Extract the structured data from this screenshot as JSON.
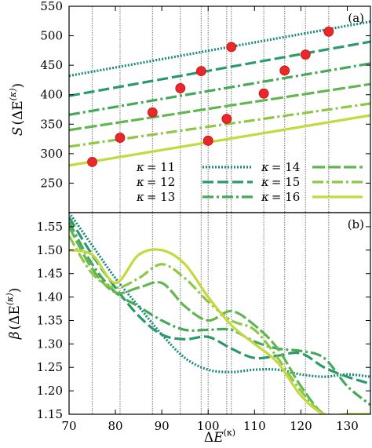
{
  "chart_data": [
    {
      "type": "line",
      "panel_label": "(a)",
      "ylabel": "S(ΔE^(κ))",
      "xlim": [
        70,
        135
      ],
      "ylim": [
        200,
        550
      ],
      "yticks": [
        250,
        300,
        350,
        400,
        450,
        500,
        550
      ],
      "grid": "vertical dotted lines at ΔE^(κ) values of the marked points",
      "vertical_markers": [
        75,
        81,
        88,
        94,
        98.5,
        100,
        104,
        105,
        112,
        116.5,
        121,
        126
      ],
      "legend_placement": "bottom-right",
      "series": [
        {
          "name": "κ = 11",
          "color": "#1a8a7a",
          "dash": "2,2",
          "x": [
            70,
            135
          ],
          "y": [
            432,
            524
          ]
        },
        {
          "name": "κ = 12",
          "color": "#2a9a6a",
          "dash": "14,5",
          "x": [
            70,
            135
          ],
          "y": [
            398,
            490
          ]
        },
        {
          "name": "κ = 13",
          "color": "#45a85a",
          "dash": "14,4,3,4",
          "x": [
            70,
            135
          ],
          "y": [
            366,
            453
          ]
        },
        {
          "name": "κ = 14",
          "color": "#62b650",
          "dash": "16,4",
          "x": [
            70,
            135
          ],
          "y": [
            340,
            418
          ]
        },
        {
          "name": "κ = 15",
          "color": "#8ec646",
          "dash": "14,4,3,4",
          "x": [
            70,
            135
          ],
          "y": [
            312,
            385
          ]
        },
        {
          "name": "κ = 16",
          "color": "#c3d93e",
          "dash": "",
          "x": [
            70,
            135
          ],
          "y": [
            280,
            365
          ]
        }
      ],
      "points": {
        "color": "#e8282a",
        "x": [
          75,
          81,
          88,
          94,
          98.5,
          100,
          104,
          105,
          112,
          116.5,
          121,
          126
        ],
        "y": [
          286,
          327,
          370,
          411,
          440,
          322,
          359,
          481,
          402,
          441,
          468,
          507
        ]
      }
    },
    {
      "type": "line",
      "panel_label": "(b)",
      "xlabel": "ΔE^(κ)",
      "ylabel": "β(ΔE^(κ))",
      "xlim": [
        70,
        135
      ],
      "ylim": [
        1.15,
        1.58
      ],
      "xticks": [
        70,
        80,
        90,
        100,
        110,
        120,
        130
      ],
      "yticks": [
        1.15,
        1.2,
        1.25,
        1.3,
        1.35,
        1.4,
        1.45,
        1.5,
        1.55
      ],
      "vertical_markers": [
        75,
        81,
        88,
        94,
        98.5,
        100,
        104,
        105,
        112,
        116.5,
        121,
        126
      ],
      "series": [
        {
          "name": "κ = 11",
          "color": "#1a8a7a",
          "dash": "2,2",
          "x": [
            70,
            75,
            80,
            85,
            90,
            95,
            100,
            105,
            110,
            115,
            120,
            125,
            130,
            135
          ],
          "y": [
            1.58,
            1.51,
            1.44,
            1.38,
            1.32,
            1.27,
            1.245,
            1.24,
            1.245,
            1.245,
            1.235,
            1.23,
            1.235,
            1.23
          ]
        },
        {
          "name": "κ = 12",
          "color": "#2a9a6a",
          "dash": "14,5",
          "x": [
            70,
            75,
            80,
            85,
            90,
            95,
            100,
            105,
            110,
            115,
            120,
            125,
            130,
            135
          ],
          "y": [
            1.57,
            1.49,
            1.42,
            1.36,
            1.32,
            1.31,
            1.315,
            1.29,
            1.27,
            1.275,
            1.28,
            1.25,
            1.23,
            1.215
          ]
        },
        {
          "name": "κ = 13",
          "color": "#45a85a",
          "dash": "14,4,3,4",
          "x": [
            70,
            75,
            80,
            85,
            90,
            95,
            100,
            105,
            110,
            115,
            120,
            125,
            130,
            135
          ],
          "y": [
            1.56,
            1.47,
            1.41,
            1.38,
            1.35,
            1.33,
            1.33,
            1.33,
            1.305,
            1.29,
            1.285,
            1.27,
            1.21,
            1.17
          ]
        },
        {
          "name": "κ = 14",
          "color": "#62b650",
          "dash": "16,4",
          "x": [
            70,
            75,
            80,
            85,
            90,
            95,
            100,
            105,
            110,
            115,
            120,
            125,
            130,
            135
          ],
          "y": [
            1.55,
            1.46,
            1.41,
            1.42,
            1.43,
            1.38,
            1.35,
            1.37,
            1.34,
            1.29,
            1.21,
            1.15,
            1.15,
            1.15
          ]
        },
        {
          "name": "κ = 15",
          "color": "#8ec646",
          "dash": "14,4,3,4",
          "x": [
            70,
            75,
            80,
            85,
            90,
            95,
            100,
            105,
            110,
            115,
            120,
            125,
            130,
            135
          ],
          "y": [
            1.53,
            1.45,
            1.42,
            1.44,
            1.47,
            1.44,
            1.39,
            1.35,
            1.33,
            1.27,
            1.2,
            1.15,
            1.15,
            1.15
          ]
        },
        {
          "name": "κ = 16",
          "color": "#c3d93e",
          "dash": "",
          "x": [
            70,
            75,
            80,
            85,
            90,
            95,
            100,
            105,
            110,
            115,
            120,
            125,
            130,
            135
          ],
          "y": [
            1.5,
            1.49,
            1.43,
            1.49,
            1.5,
            1.47,
            1.4,
            1.34,
            1.3,
            1.26,
            1.19,
            1.15,
            1.15,
            1.15
          ]
        }
      ]
    }
  ]
}
